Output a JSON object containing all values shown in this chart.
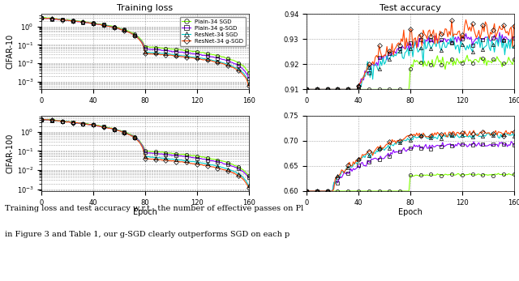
{
  "title_loss": "Training loss",
  "title_acc": "Test accuracy",
  "xlabel": "Epoch",
  "ylabel_top": "CIFAR-10",
  "ylabel_bot": "CIFAR-100",
  "xlim": [
    0,
    160
  ],
  "xticks": [
    0,
    40,
    80,
    120,
    160
  ],
  "legend_labels": [
    "Plain-34 SGD",
    "Plain-34 ɡ-SGD",
    "ResNet-34 SGD",
    "ResNet-34 ɡ-SGD"
  ],
  "colors": [
    "#7FFF00",
    "#8B00FF",
    "#00CCCC",
    "#FF4500"
  ],
  "markers": [
    "o",
    "s",
    "^",
    "D"
  ],
  "loss_ylim_log": [
    -3.5,
    1.0
  ],
  "cifar10_acc_ylim": [
    0.91,
    0.94
  ],
  "cifar10_acc_yticks": [
    0.91,
    0.92,
    0.93,
    0.94
  ],
  "cifar100_acc_ylim": [
    0.6,
    0.75
  ],
  "cifar100_acc_yticks": [
    0.6,
    0.65,
    0.7,
    0.75
  ],
  "caption_line1": "Training loss and test accuracy w.r.t.  the number of effective passes on Pl",
  "caption_line2": "in Figure 3 and Table 1, our ɡ-SGD clearly outperforms SGD on each p"
}
